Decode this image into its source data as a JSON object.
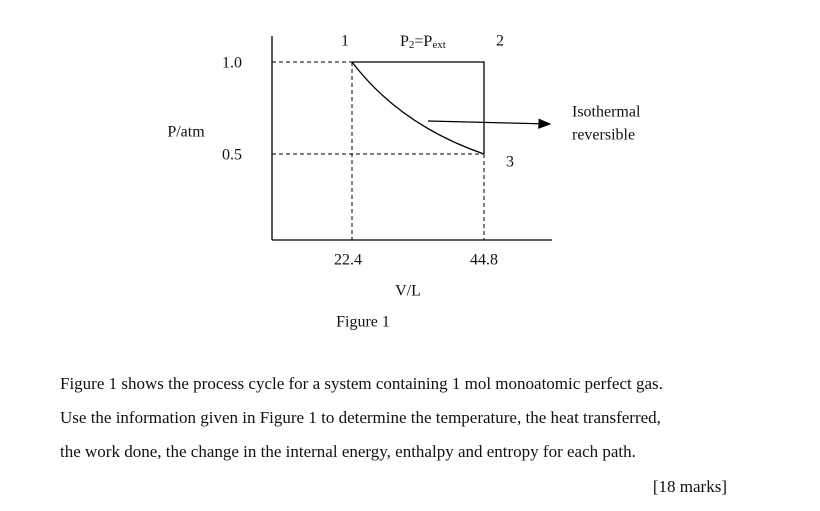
{
  "figure": {
    "point_labels": [
      "1",
      "2",
      "3"
    ],
    "pressure_label": [
      "P",
      "2",
      "=P",
      "ext"
    ],
    "y_labels": [
      "1.0",
      "0.5"
    ],
    "y_axis_title": "P/atm",
    "x_labels": [
      "22.4",
      "44.8"
    ],
    "x_axis_title": "V/L",
    "annotation": [
      "Isothermal",
      "reversible"
    ],
    "caption": "Figure 1"
  },
  "question": {
    "lines": [
      "Figure 1 shows the process cycle for a system containing 1 mol monoatomic perfect gas.",
      "Use the information given in Figure 1 to determine the temperature, the heat transferred,",
      "the work done, the change in the internal energy, enthalpy and entropy for each path."
    ],
    "marks": "[18 marks]"
  }
}
